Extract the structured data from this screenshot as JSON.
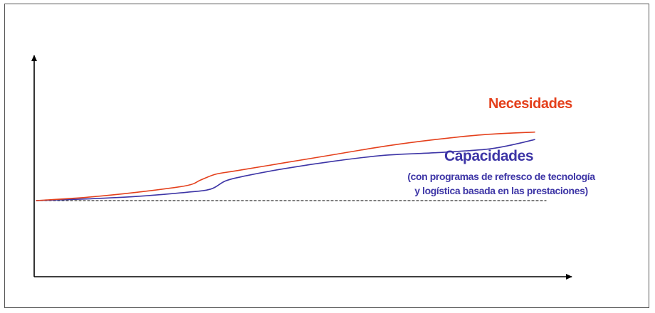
{
  "chart_data": {
    "type": "line",
    "title": "",
    "xlabel": "",
    "ylabel": "",
    "grid": false,
    "legend": "none",
    "colors": {
      "necesidades": "#e4401c",
      "capacidades": "#3d35a6",
      "baseline": "#333333",
      "axes": "#000000"
    },
    "series": [
      {
        "name": "Necesidades",
        "x": [
          0,
          0.1,
          0.2,
          0.3,
          0.33,
          0.36,
          0.4,
          0.5,
          0.6,
          0.7,
          0.8,
          0.9,
          1.0
        ],
        "values": [
          0,
          0.04,
          0.1,
          0.18,
          0.25,
          0.32,
          0.36,
          0.46,
          0.56,
          0.66,
          0.74,
          0.8,
          0.83
        ]
      },
      {
        "name": "Capacidades",
        "note_lines": [
          "(con programas de refresco de tecnología",
          "y logística basada en las prestaciones)"
        ],
        "x": [
          0,
          0.1,
          0.2,
          0.3,
          0.35,
          0.38,
          0.42,
          0.5,
          0.6,
          0.7,
          0.8,
          0.9,
          0.95,
          1.0
        ],
        "values": [
          0,
          0.02,
          0.05,
          0.1,
          0.14,
          0.24,
          0.3,
          0.39,
          0.48,
          0.55,
          0.58,
          0.62,
          0.67,
          0.74
        ]
      },
      {
        "name": "",
        "style": "dashed",
        "x": [
          0,
          1.0
        ],
        "values": [
          0,
          0
        ]
      }
    ]
  }
}
